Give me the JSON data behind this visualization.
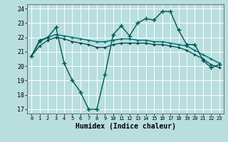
{
  "xlabel": "Humidex (Indice chaleur)",
  "background_color": "#b8dede",
  "grid_color": "#ffffff",
  "line_color_jagged": "#005555",
  "line_color_flat1": "#007777",
  "line_color_flat2": "#004444",
  "xlim": [
    -0.5,
    23.5
  ],
  "ylim": [
    16.7,
    24.3
  ],
  "yticks": [
    17,
    18,
    19,
    20,
    21,
    22,
    23,
    24
  ],
  "xticks": [
    0,
    1,
    2,
    3,
    4,
    5,
    6,
    7,
    8,
    9,
    10,
    11,
    12,
    13,
    14,
    15,
    16,
    17,
    18,
    19,
    20,
    21,
    22,
    23
  ],
  "series_jagged_x": [
    0,
    1,
    2,
    3,
    4,
    5,
    6,
    7,
    8,
    9,
    10,
    11,
    12,
    13,
    14,
    15,
    16,
    17,
    18,
    19,
    20,
    21,
    22,
    23
  ],
  "series_jagged_y": [
    20.7,
    21.8,
    22.0,
    22.7,
    20.2,
    19.0,
    18.2,
    17.0,
    17.0,
    19.4,
    22.2,
    22.8,
    22.1,
    23.0,
    23.3,
    23.2,
    23.8,
    23.8,
    22.5,
    21.5,
    21.5,
    20.4,
    19.9,
    20.1
  ],
  "series_flat1_x": [
    0,
    1,
    2,
    3,
    4,
    5,
    6,
    7,
    8,
    9,
    10,
    11,
    12,
    13,
    14,
    15,
    16,
    17,
    18,
    19,
    20,
    21,
    22,
    23
  ],
  "series_flat1_y": [
    20.7,
    21.7,
    22.0,
    22.2,
    22.1,
    22.0,
    21.9,
    21.8,
    21.7,
    21.7,
    21.8,
    21.9,
    21.9,
    21.8,
    21.8,
    21.7,
    21.7,
    21.6,
    21.5,
    21.4,
    21.1,
    20.8,
    20.5,
    20.2
  ],
  "series_flat2_x": [
    0,
    1,
    2,
    3,
    4,
    5,
    6,
    7,
    8,
    9,
    10,
    11,
    12,
    13,
    14,
    15,
    16,
    17,
    18,
    19,
    20,
    21,
    22,
    23
  ],
  "series_flat2_y": [
    20.7,
    21.4,
    21.8,
    22.0,
    21.9,
    21.7,
    21.6,
    21.5,
    21.3,
    21.3,
    21.5,
    21.6,
    21.6,
    21.6,
    21.6,
    21.5,
    21.5,
    21.4,
    21.3,
    21.1,
    20.8,
    20.5,
    20.1,
    19.9
  ]
}
